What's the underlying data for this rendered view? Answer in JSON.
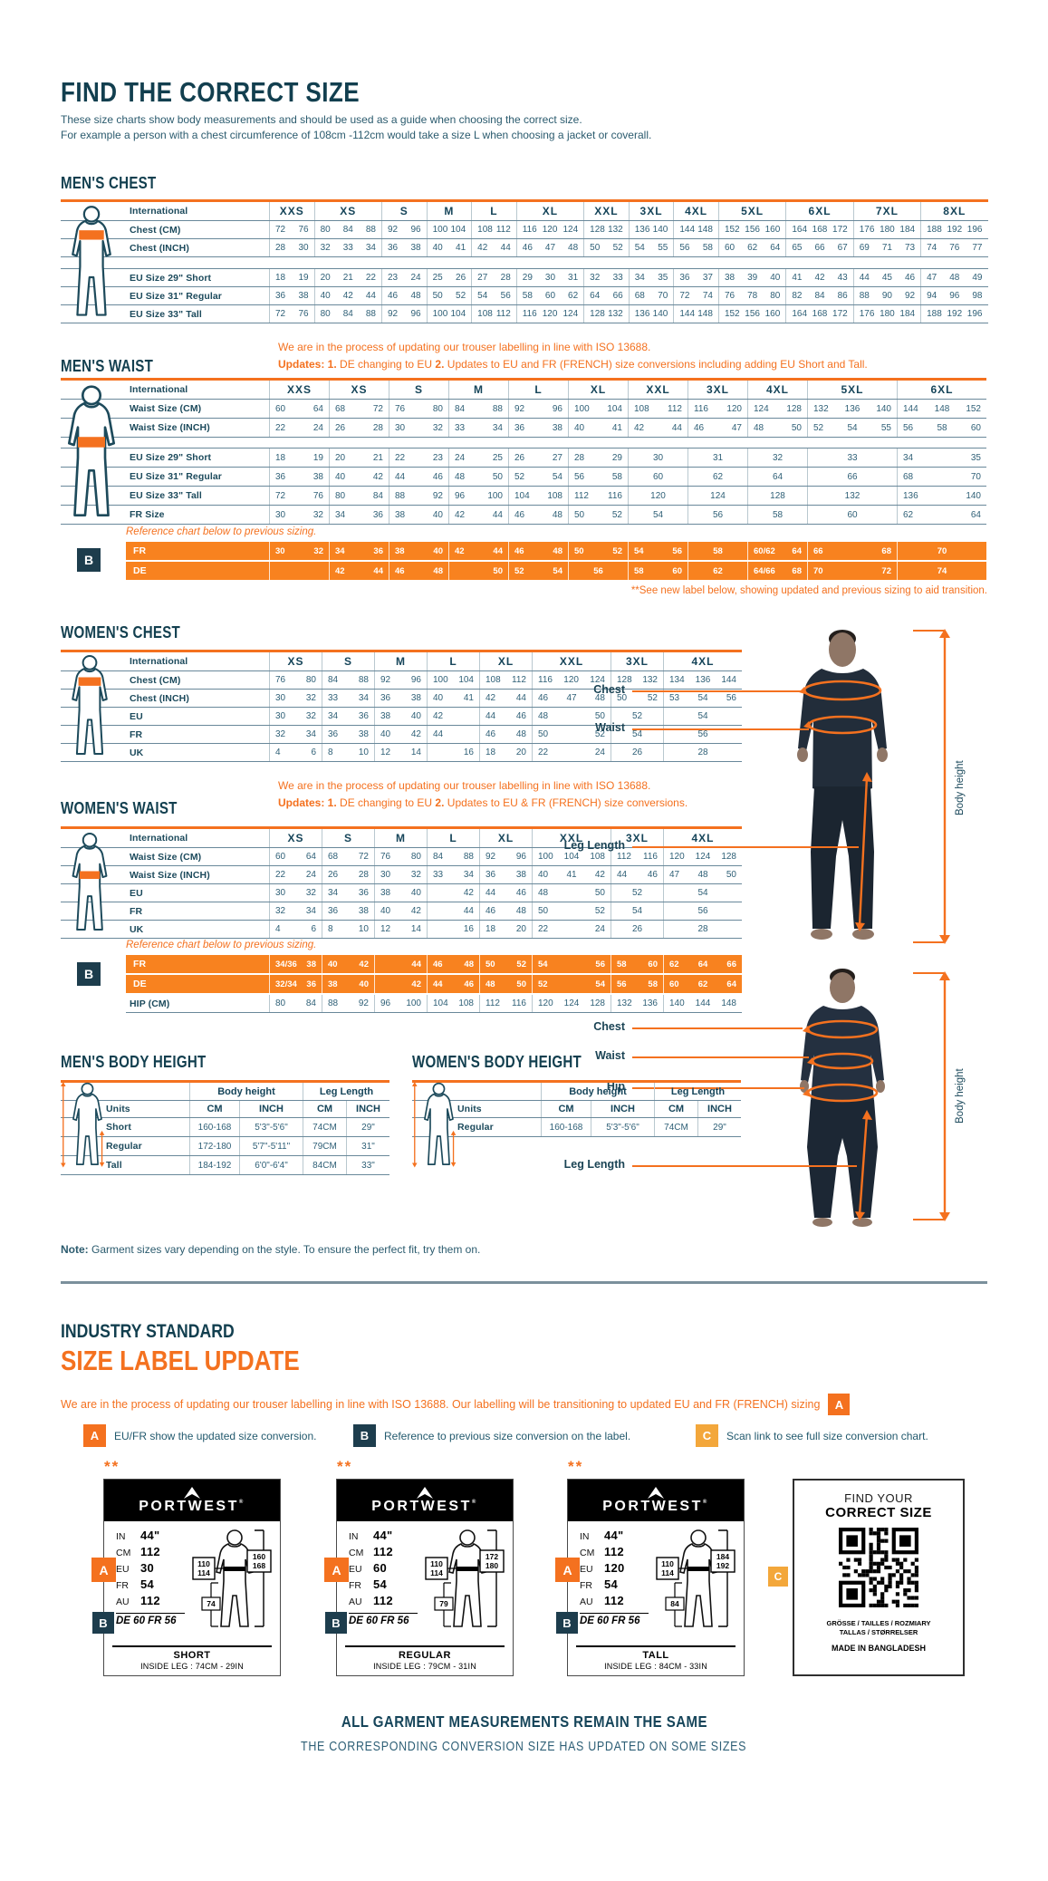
{
  "header": {
    "title": "FIND THE CORRECT SIZE",
    "intro_line1": "These size charts show body measurements and should be used as a guide when choosing the correct size.",
    "intro_line2": "For example a person with a chest circumference of 108cm -112cm would take a size L when choosing a jacket or coverall."
  },
  "colors": {
    "teal": "#123F4F",
    "text_teal": "#2F6077",
    "orange": "#F4711F",
    "orange_row": "#F8821F",
    "yellow": "#F3A73B",
    "badge_dark": "#1D3D4D"
  },
  "note": {
    "label": "Note:",
    "text": " Garment sizes vary depending on the style. To ensure the perfect fit, try them on."
  },
  "figures": {
    "man": {
      "labels": [
        "Chest",
        "Waist",
        "Leg Length"
      ],
      "body_height": "Body height"
    },
    "woman": {
      "labels": [
        "Chest",
        "Waist",
        "Hip",
        "Leg Length"
      ],
      "body_height": "Body height"
    }
  },
  "tables": {
    "mens_chest": {
      "title": "MEN'S CHEST",
      "header_label": "International",
      "sizes": [
        "XXS",
        "XS",
        "S",
        "M",
        "L",
        "XL",
        "XXL",
        "3XL",
        "4XL",
        "5XL",
        "6XL",
        "7XL",
        "8XL"
      ],
      "subcols": [
        2,
        3,
        2,
        2,
        2,
        3,
        2,
        2,
        2,
        3,
        3,
        3,
        3
      ],
      "rows": [
        {
          "label": "Chest (CM)",
          "cells": [
            "72 76",
            "80 84 88",
            "92 96",
            "100 104",
            "108 112",
            "116 120 124",
            "128 132",
            "136 140",
            "144 148",
            "152 156 160",
            "164 168 172",
            "176 180 184",
            "188 192 196"
          ]
        },
        {
          "label": "Chest (INCH)",
          "cells": [
            "28 30",
            "32 33 34",
            "36 38",
            "40 41",
            "42 44",
            "46 47 48",
            "50 52",
            "54 55",
            "56 58",
            "60 62 64",
            "65 66 67",
            "69 71 73",
            "74 76 77"
          ]
        },
        {
          "spacer": 13
        },
        {
          "label": "EU Size 29\" Short",
          "cells": [
            "18 19",
            "20 21 22",
            "23 24",
            "25 26",
            "27 28",
            "29 30 31",
            "32 33",
            "34 35",
            "36 37",
            "38 39 40",
            "41 42 43",
            "44 45 46",
            "47 48 49"
          ]
        },
        {
          "label": "EU Size 31\" Regular",
          "cells": [
            "36 38",
            "40 42 44",
            "46 48",
            "50 52",
            "54 56",
            "58 60 62",
            "64 66",
            "68 70",
            "72 74",
            "76 78 80",
            "82 84 86",
            "88 90 92",
            "94 96 98"
          ]
        },
        {
          "label": "EU Size 33\" Tall",
          "cells": [
            "72 76",
            "80 84 88",
            "92 96",
            "100 104",
            "108 112",
            "116 120 124",
            "128 132",
            "136 140",
            "144 148",
            "152 156 160",
            "164 168 172",
            "176 180 184",
            "188 192 196"
          ]
        }
      ]
    },
    "mens_waist": {
      "title": "MEN'S WAIST",
      "header_label": "International",
      "note1": "We are in the process of updating our trouser labelling in line with ISO 13688.",
      "note2": [
        {
          "t": "Updates:",
          "b": true
        },
        {
          "t": "   1.",
          "b": true
        },
        {
          "t": " DE changing to EU",
          "b": false
        },
        {
          "t": "     2.",
          "b": true
        },
        {
          "t": " Updates to EU and FR (FRENCH) size conversions including adding EU Short and Tall.",
          "b": false
        }
      ],
      "ref_note": "Reference chart below to previous sizing.",
      "footnote": "**See new label below, showing updated and previous sizing to aid transition.",
      "sizes": [
        "XXS",
        "XS",
        "S",
        "M",
        "L",
        "XL",
        "XXL",
        "3XL",
        "4XL",
        "5XL",
        "6XL"
      ],
      "subcols": [
        2,
        2,
        2,
        2,
        2,
        2,
        2,
        2,
        2,
        3,
        3
      ],
      "rows": [
        {
          "label": "Waist Size (CM)",
          "cells": [
            "60 64",
            "68 72",
            "76 80",
            "84 88",
            "92 96",
            "100 104",
            "108 112",
            "116 120",
            "124 128",
            "132 136 140",
            "144 148 152"
          ]
        },
        {
          "label": "Waist Size (INCH)",
          "cells": [
            "22 24",
            "26 28",
            "30 32",
            "33 34",
            "36 38",
            "40 41",
            "42 44",
            "46 47",
            "48 50",
            "52 54 55",
            "56 58 60"
          ]
        },
        {
          "spacer": 12
        },
        {
          "label": "EU Size 29\" Short",
          "cells": [
            "18 19",
            "20 21",
            "22 23",
            "24 25",
            "26 27",
            "28 29",
            "30",
            "31",
            "32",
            "33",
            "34 35"
          ]
        },
        {
          "label": "EU Size 31\" Regular",
          "cells": [
            "36 38",
            "40 42",
            "44 46",
            "48 50",
            "52 54",
            "56 58",
            "60",
            "62",
            "64",
            "66",
            "68 70"
          ]
        },
        {
          "label": "EU Size 33\" Tall",
          "cells": [
            "72 76",
            "80 84",
            "88 92",
            "96 100",
            "104 108",
            "112 116",
            "120",
            "124",
            "128",
            "132",
            "136 140"
          ]
        },
        {
          "label": "FR Size",
          "cells": [
            "30 32",
            "34 36",
            "38 40",
            "42 44",
            "46 48",
            "50 52",
            "54",
            "56",
            "58",
            "60",
            "62 64"
          ]
        }
      ],
      "ref_rows": [
        {
          "label": "FR",
          "cells": [
            "30 32",
            "34 36",
            "38 40",
            "42 44",
            "46 48",
            "50 52",
            "54 56",
            "58",
            "60/62 64",
            "66 68",
            "70"
          ]
        },
        {
          "label": "DE",
          "cells": [
            "",
            "42 44",
            "46 48",
            "_ 50",
            "52 54",
            "56",
            "58 60",
            "62",
            "64/66 68",
            "70 72",
            "74"
          ]
        }
      ]
    },
    "womens_chest": {
      "title": "WOMEN'S CHEST",
      "header_label": "International",
      "sizes": [
        "XS",
        "S",
        "M",
        "L",
        "XL",
        "XXL",
        "3XL",
        "4XL"
      ],
      "subcols": [
        2,
        2,
        2,
        2,
        2,
        3,
        2,
        3
      ],
      "rows": [
        {
          "label": "Chest (CM)",
          "cells": [
            "76 80",
            "84 88",
            "92 96",
            "100 104",
            "108 112",
            "116 120 124",
            "128 132",
            "134 136 144"
          ]
        },
        {
          "label": "Chest (INCH)",
          "cells": [
            "30 32",
            "33 34",
            "36 38",
            "40 41",
            "42 44",
            "46 47 48",
            "50 52",
            "53 54 56"
          ]
        },
        {
          "label": "EU",
          "cells": [
            "30 32",
            "34 36",
            "38 40",
            "42 _",
            "44 46",
            "48 _ 50",
            "52",
            "54"
          ]
        },
        {
          "label": "FR",
          "cells": [
            "32 34",
            "36 38",
            "40 42",
            "44 _",
            "46 48",
            "50 _ 52",
            "54",
            "56"
          ]
        },
        {
          "label": "UK",
          "cells": [
            "4 6",
            "8 10",
            "12 14",
            "_ 16",
            "18 20",
            "22 _ 24",
            "26",
            "28"
          ]
        }
      ]
    },
    "womens_waist": {
      "title": "WOMEN'S WAIST",
      "header_label": "International",
      "note1": "We are in the process of updating our trouser labelling in line with ISO 13688.",
      "note2": [
        {
          "t": "Updates:",
          "b": true
        },
        {
          "t": "   1.",
          "b": true
        },
        {
          "t": " DE changing to EU",
          "b": false
        },
        {
          "t": "     2.",
          "b": true
        },
        {
          "t": " Updates to EU & FR (FRENCH) size conversions.",
          "b": false
        }
      ],
      "ref_note": "Reference chart below to previous sizing.",
      "sizes": [
        "XS",
        "S",
        "M",
        "L",
        "XL",
        "XXL",
        "3XL",
        "4XL"
      ],
      "subcols": [
        2,
        2,
        2,
        2,
        2,
        3,
        2,
        3
      ],
      "rows": [
        {
          "label": "Waist Size (CM)",
          "cells": [
            "60 64",
            "68 72",
            "76 80",
            "84 88",
            "92 96",
            "100 104 108",
            "112 116",
            "120 124 128"
          ]
        },
        {
          "label": "Waist Size (INCH)",
          "cells": [
            "22 24",
            "26 28",
            "30 32",
            "33 34",
            "36 38",
            "40 41 42",
            "44 46",
            "47 48 50"
          ]
        },
        {
          "label": "EU",
          "cells": [
            "30 32",
            "34 36",
            "38 40",
            "_ 42",
            "44 46",
            "48 _ 50",
            "52",
            "54"
          ]
        },
        {
          "label": "FR",
          "cells": [
            "32 34",
            "36 38",
            "40 42",
            "_ 44",
            "46 48",
            "50 _ 52",
            "54",
            "56"
          ]
        },
        {
          "label": "UK",
          "cells": [
            "4 6",
            "8 10",
            "12 14",
            "_ 16",
            "18 20",
            "22 _ 24",
            "26",
            "28"
          ]
        }
      ],
      "ref_rows": [
        {
          "label": "FR",
          "cells": [
            "34/36 38",
            "40 42",
            "_ 44",
            "46 48",
            "50 52",
            "54 _ 56",
            "58 60",
            "62 64 66"
          ]
        },
        {
          "label": "DE",
          "cells": [
            "32/34 36",
            "38 40",
            "_ 42",
            "44 46",
            "48 50",
            "52 _ 54",
            "56 58",
            "60 62 64"
          ]
        }
      ],
      "hip_row": {
        "label": "HIP (CM)",
        "cells": [
          "80 84",
          "88 92",
          "96 100",
          "104 108",
          "112 116",
          "120 124 128",
          "132 136",
          "140 144 148"
        ]
      }
    },
    "mens_body_height": {
      "title": "MEN'S BODY HEIGHT",
      "groups": [
        "Body height",
        "Leg Length"
      ],
      "units_label": "Units",
      "unit_cols": [
        "CM",
        "INCH",
        "CM",
        "INCH"
      ],
      "rows": [
        {
          "label": "Short",
          "cells": [
            "160-168",
            "5'3\"-5'6\"",
            "74CM",
            "29\""
          ]
        },
        {
          "label": "Regular",
          "cells": [
            "172-180",
            "5'7\"-5'11\"",
            "79CM",
            "31\""
          ]
        },
        {
          "label": "Tall",
          "cells": [
            "184-192",
            "6'0\"-6'4\"",
            "84CM",
            "33\""
          ]
        }
      ]
    },
    "womens_body_height": {
      "title": "WOMEN'S BODY HEIGHT",
      "groups": [
        "Body height",
        "Leg Length"
      ],
      "units_label": "Units",
      "unit_cols": [
        "CM",
        "INCH",
        "CM",
        "INCH"
      ],
      "rows": [
        {
          "label": "Regular",
          "cells": [
            "160-168",
            "5'3\"-5'6\"",
            "74CM",
            "29\""
          ]
        }
      ]
    }
  },
  "industry": {
    "heading1": "INDUSTRY STANDARD",
    "heading2": "SIZE LABEL UPDATE",
    "paragraph": "We are in the process of updating our trouser labelling in line with ISO 13688. Our labelling will be transitioning to updated EU and FR (FRENCH) sizing",
    "badge_a": "A",
    "legend": [
      {
        "badge": "A",
        "text": "EU/FR show the updated size conversion."
      },
      {
        "badge": "B",
        "text": "Reference to previous size conversion on the label."
      },
      {
        "badge": "C",
        "text": "Scan link to see full size conversion chart."
      }
    ]
  },
  "labels": [
    {
      "stars": "**",
      "brand": "PORTWEST",
      "specs": [
        [
          "IN",
          "44\""
        ],
        [
          "CM",
          "112"
        ],
        [
          "EU",
          "30"
        ],
        [
          "FR",
          "54"
        ],
        [
          "AU",
          "112"
        ]
      ],
      "prev": "DE 60 FR 56",
      "waist_box": [
        "110",
        "114"
      ],
      "height_box": [
        "160",
        "168"
      ],
      "leg_box": "74",
      "fit": "SHORT",
      "inside_leg": "INSIDE LEG : 74CM - 29IN",
      "badge_a": "A",
      "badge_b": "B"
    },
    {
      "stars": "**",
      "brand": "PORTWEST",
      "specs": [
        [
          "IN",
          "44\""
        ],
        [
          "CM",
          "112"
        ],
        [
          "EU",
          "60"
        ],
        [
          "FR",
          "54"
        ],
        [
          "AU",
          "112"
        ]
      ],
      "prev": "DE 60 FR 56",
      "waist_box": [
        "110",
        "114"
      ],
      "height_box": [
        "172",
        "180"
      ],
      "leg_box": "79",
      "fit": "REGULAR",
      "inside_leg": "INSIDE LEG : 79CM - 31IN",
      "badge_a": "A",
      "badge_b": "B"
    },
    {
      "stars": "**",
      "brand": "PORTWEST",
      "specs": [
        [
          "IN",
          "44\""
        ],
        [
          "CM",
          "112"
        ],
        [
          "EU",
          "120"
        ],
        [
          "FR",
          "54"
        ],
        [
          "AU",
          "112"
        ]
      ],
      "prev": "DE 60 FR 56",
      "waist_box": [
        "110",
        "114"
      ],
      "height_box": [
        "184",
        "192"
      ],
      "leg_box": "84",
      "fit": "TALL",
      "inside_leg": "INSIDE LEG : 84CM - 33IN",
      "badge_a": "A",
      "badge_b": "B"
    }
  ],
  "qr_card": {
    "badge_c": "C",
    "line1": "FIND YOUR",
    "line2": "CORRECT SIZE",
    "langs1": "GRÖSSE / TAILLES / ROZMIARY",
    "langs2": "TALLAS / STØRRELSER",
    "made": "MADE IN BANGLADESH"
  },
  "footer": {
    "line1": "ALL GARMENT MEASUREMENTS REMAIN THE SAME",
    "line2": "THE CORRESPONDING CONVERSION SIZE HAS UPDATED ON SOME SIZES"
  }
}
